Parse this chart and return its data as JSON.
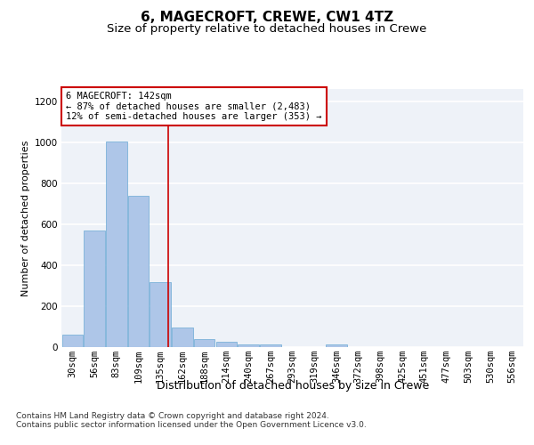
{
  "title": "6, MAGECROFT, CREWE, CW1 4TZ",
  "subtitle": "Size of property relative to detached houses in Crewe",
  "xlabel": "Distribution of detached houses by size in Crewe",
  "ylabel": "Number of detached properties",
  "bar_color": "#aec6e8",
  "bar_edge_color": "#6aaad4",
  "background_color": "#eef2f8",
  "grid_color": "#ffffff",
  "categories": [
    "30sqm",
    "56sqm",
    "83sqm",
    "109sqm",
    "135sqm",
    "162sqm",
    "188sqm",
    "214sqm",
    "240sqm",
    "267sqm",
    "293sqm",
    "319sqm",
    "346sqm",
    "372sqm",
    "398sqm",
    "425sqm",
    "451sqm",
    "477sqm",
    "503sqm",
    "530sqm",
    "556sqm"
  ],
  "values": [
    62,
    568,
    1003,
    740,
    316,
    96,
    38,
    25,
    12,
    12,
    0,
    0,
    12,
    0,
    0,
    0,
    0,
    0,
    0,
    0,
    0
  ],
  "ylim": [
    0,
    1260
  ],
  "yticks": [
    0,
    200,
    400,
    600,
    800,
    1000,
    1200
  ],
  "property_line_x": 4.35,
  "annotation_text": "6 MAGECROFT: 142sqm\n← 87% of detached houses are smaller (2,483)\n12% of semi-detached houses are larger (353) →",
  "annotation_box_color": "#ffffff",
  "annotation_box_edge": "#cc0000",
  "red_line_color": "#cc0000",
  "footer_text": "Contains HM Land Registry data © Crown copyright and database right 2024.\nContains public sector information licensed under the Open Government Licence v3.0.",
  "title_fontsize": 11,
  "subtitle_fontsize": 9.5,
  "xlabel_fontsize": 9,
  "ylabel_fontsize": 8,
  "tick_fontsize": 7.5,
  "annotation_fontsize": 7.5,
  "footer_fontsize": 6.5
}
